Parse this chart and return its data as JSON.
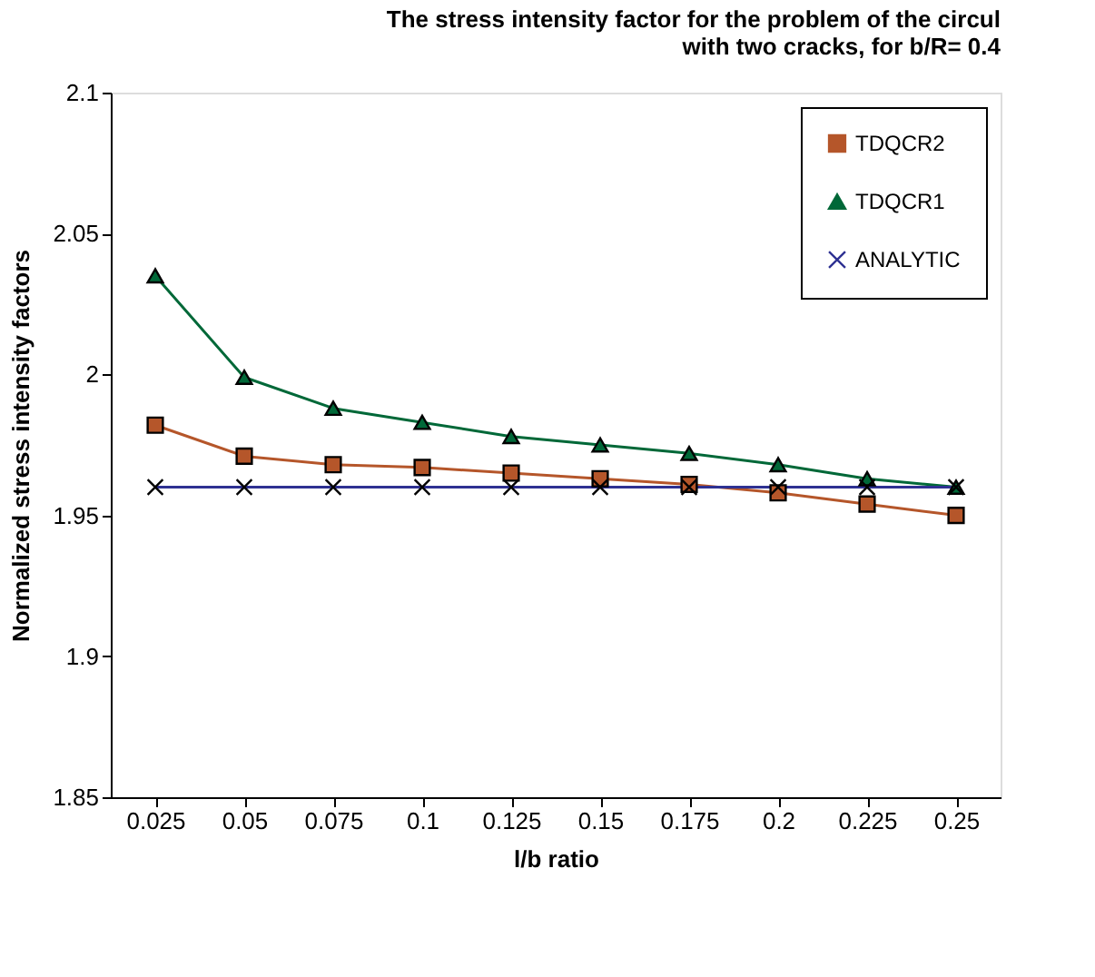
{
  "chart_data": {
    "type": "line",
    "title": "The stress intensity factor for the problem of the circul\nwith two cracks, for b/R= 0.4",
    "xlabel": "l/b ratio",
    "ylabel": "Normalized stress intensity factors",
    "categories": [
      "0.025",
      "0.05",
      "0.075",
      "0.1",
      "0.125",
      "0.15",
      "0.175",
      "0.2",
      "0.225",
      "0.25"
    ],
    "ylim": [
      1.85,
      2.1
    ],
    "yticks": [
      1.85,
      1.9,
      1.95,
      2,
      2.05,
      2.1
    ],
    "grid": false,
    "legend": "top right",
    "line_style": "solid",
    "series": [
      {
        "name": "TDQCR2",
        "color": "#b5562a",
        "marker": "square",
        "values": [
          1.982,
          1.971,
          1.968,
          1.967,
          1.965,
          1.963,
          1.961,
          1.958,
          1.954,
          1.95
        ]
      },
      {
        "name": "TDQCR1",
        "color": "#006838",
        "marker": "triangle",
        "values": [
          2.035,
          1.999,
          1.988,
          1.983,
          1.978,
          1.975,
          1.972,
          1.968,
          1.963,
          1.96
        ]
      },
      {
        "name": "ANALYTIC",
        "color": "#2e3192",
        "marker": "cross",
        "values": [
          1.96,
          1.96,
          1.96,
          1.96,
          1.96,
          1.96,
          1.96,
          1.96,
          1.96,
          1.96
        ]
      }
    ]
  }
}
